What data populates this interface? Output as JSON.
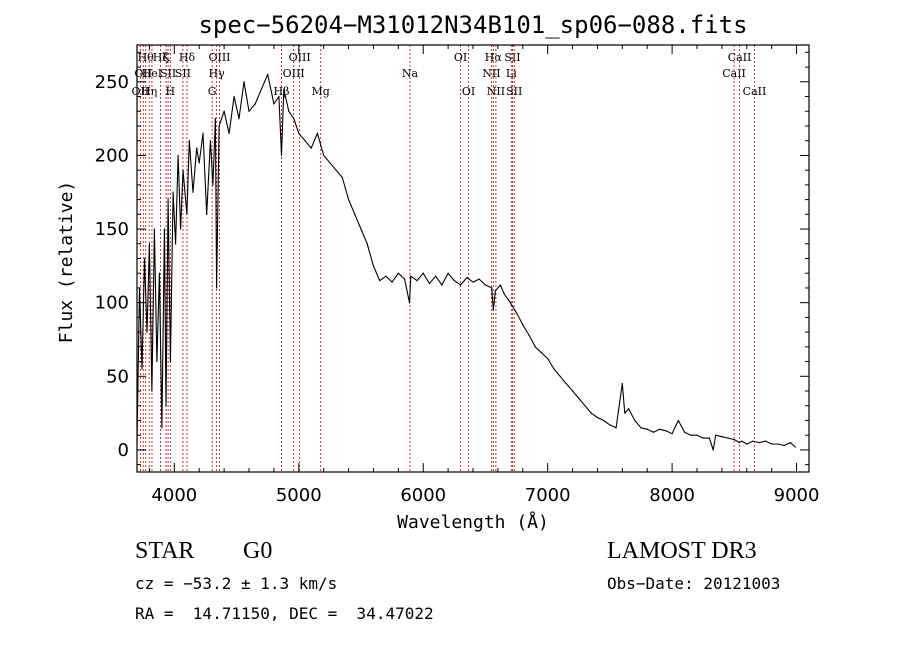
{
  "chart_data": {
    "type": "line",
    "title": "spec−56204−M31012N34B101_sp06−088.fits",
    "xlabel": "Wavelength (Å)",
    "ylabel": "Flux (relative)",
    "xlim": [
      3700,
      9100
    ],
    "ylim": [
      -15,
      275
    ],
    "xticks": [
      4000,
      5000,
      6000,
      7000,
      8000,
      9000
    ],
    "xtick_labels": [
      "4000",
      "5000",
      "6000",
      "7000",
      "8000",
      "9000"
    ],
    "yticks": [
      0,
      50,
      100,
      150,
      200,
      250
    ],
    "ytick_labels": [
      "0",
      "50",
      "100",
      "150",
      "200",
      "250"
    ],
    "grid": false,
    "series": [
      {
        "name": "flux",
        "x": [
          3700,
          3720,
          3740,
          3760,
          3780,
          3800,
          3820,
          3840,
          3860,
          3880,
          3900,
          3920,
          3933,
          3950,
          3968,
          3990,
          4010,
          4030,
          4050,
          4070,
          4101,
          4120,
          4150,
          4180,
          4200,
          4230,
          4260,
          4290,
          4310,
          4330,
          4340,
          4360,
          4400,
          4440,
          4480,
          4520,
          4560,
          4600,
          4650,
          4700,
          4750,
          4800,
          4840,
          4861,
          4880,
          4920,
          4960,
          5000,
          5050,
          5100,
          5150,
          5200,
          5250,
          5300,
          5350,
          5400,
          5450,
          5500,
          5550,
          5600,
          5650,
          5700,
          5750,
          5800,
          5850,
          5890,
          5900,
          5950,
          6000,
          6050,
          6100,
          6150,
          6200,
          6250,
          6300,
          6350,
          6400,
          6450,
          6500,
          6550,
          6563,
          6580,
          6620,
          6650,
          6700,
          6750,
          6800,
          6850,
          6900,
          6950,
          7000,
          7050,
          7100,
          7150,
          7200,
          7250,
          7300,
          7350,
          7400,
          7450,
          7500,
          7550,
          7600,
          7620,
          7650,
          7700,
          7750,
          7800,
          7850,
          7900,
          7950,
          8000,
          8050,
          8100,
          8150,
          8200,
          8250,
          8300,
          8330,
          8350,
          8400,
          8450,
          8500,
          8542,
          8560,
          8600,
          8650,
          8700,
          8750,
          8800,
          8850,
          8900,
          8950,
          8990
        ],
        "values": [
          5,
          110,
          55,
          130,
          80,
          140,
          40,
          150,
          60,
          120,
          15,
          150,
          30,
          170,
          60,
          175,
          140,
          200,
          150,
          190,
          160,
          210,
          175,
          205,
          195,
          215,
          160,
          210,
          180,
          225,
          110,
          220,
          230,
          215,
          240,
          225,
          250,
          230,
          235,
          245,
          255,
          235,
          240,
          200,
          245,
          230,
          225,
          215,
          210,
          205,
          215,
          200,
          195,
          190,
          185,
          170,
          160,
          150,
          140,
          125,
          115,
          118,
          114,
          120,
          116,
          100,
          118,
          115,
          120,
          113,
          118,
          112,
          120,
          115,
          112,
          117,
          114,
          116,
          112,
          110,
          95,
          108,
          112,
          106,
          100,
          93,
          85,
          78,
          70,
          66,
          62,
          55,
          50,
          45,
          40,
          35,
          30,
          25,
          22,
          20,
          17,
          15,
          45,
          25,
          28,
          20,
          15,
          14,
          12,
          14,
          13,
          11,
          20,
          12,
          10,
          10,
          8,
          8,
          0,
          10,
          9,
          8,
          7,
          5,
          6,
          4,
          6,
          5,
          6,
          4,
          4,
          3,
          5,
          2
        ]
      }
    ],
    "lines": [
      {
        "wavelength": 3727,
        "label": "OII",
        "row": 3
      },
      {
        "wavelength": 3750,
        "label": "OII",
        "row": 2
      },
      {
        "wavelength": 3770,
        "label": "Hθ",
        "row": 1
      },
      {
        "wavelength": 3798,
        "label": "Hη",
        "row": 3
      },
      {
        "wavelength": 3820,
        "label": "HeI",
        "row": 2
      },
      {
        "wavelength": 3889,
        "label": "Hζ",
        "row": 1
      },
      {
        "wavelength": 3934,
        "label": "K",
        "row": 1
      },
      {
        "wavelength": 3950,
        "label": "SII",
        "row": 2
      },
      {
        "wavelength": 3968,
        "label": "H",
        "row": 3
      },
      {
        "wavelength": 4069,
        "label": "SII",
        "row": 2
      },
      {
        "wavelength": 4102,
        "label": "Hδ",
        "row": 1
      },
      {
        "wavelength": 4304,
        "label": "G",
        "row": 3
      },
      {
        "wavelength": 4340,
        "label": "Hγ",
        "row": 2
      },
      {
        "wavelength": 4363,
        "label": "OIII",
        "row": 1
      },
      {
        "wavelength": 4861,
        "label": "Hβ",
        "row": 3
      },
      {
        "wavelength": 4959,
        "label": "OIII",
        "row": 2
      },
      {
        "wavelength": 5007,
        "label": "OIII",
        "row": 1
      },
      {
        "wavelength": 5176,
        "label": "Mg",
        "row": 3
      },
      {
        "wavelength": 5893,
        "label": "Na",
        "row": 2
      },
      {
        "wavelength": 6300,
        "label": "OI",
        "row": 1
      },
      {
        "wavelength": 6364,
        "label": "OI",
        "row": 3
      },
      {
        "wavelength": 6548,
        "label": "NII",
        "row": 2
      },
      {
        "wavelength": 6563,
        "label": "Hα",
        "row": 1
      },
      {
        "wavelength": 6584,
        "label": "NII",
        "row": 3
      },
      {
        "wavelength": 6708,
        "label": "Li",
        "row": 2
      },
      {
        "wavelength": 6717,
        "label": "SII",
        "row": 1
      },
      {
        "wavelength": 6731,
        "label": "SII",
        "row": 3
      },
      {
        "wavelength": 8498,
        "label": "CaII",
        "row": 2
      },
      {
        "wavelength": 8542,
        "label": "CaII",
        "row": 1
      },
      {
        "wavelength": 8662,
        "label": "CaII",
        "row": 3
      }
    ]
  },
  "info": {
    "class": "STAR",
    "subclass": "G0",
    "survey": "LAMOST DR3",
    "cz": "cz = −53.2 ± 1.3 km/s",
    "obs_date": "Obs−Date: 20121003",
    "radec": "RA =  14.71150, DEC =  34.47022"
  }
}
